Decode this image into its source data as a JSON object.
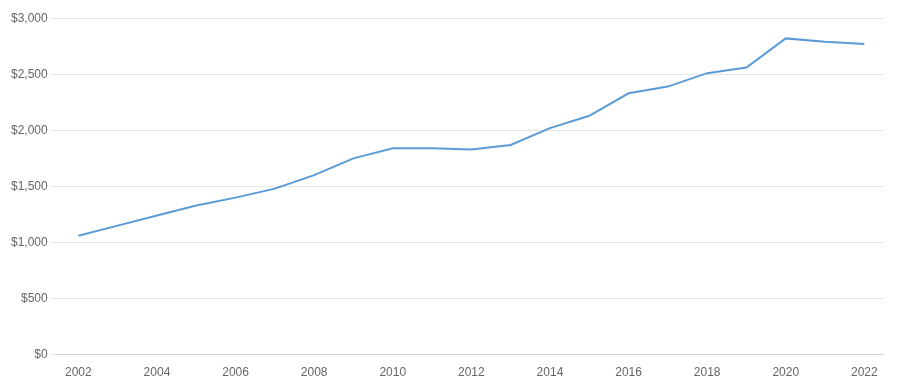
{
  "chart_data": {
    "type": "line",
    "x": [
      2002,
      2003,
      2004,
      2005,
      2006,
      2007,
      2008,
      2009,
      2010,
      2011,
      2012,
      2013,
      2014,
      2015,
      2016,
      2017,
      2018,
      2019,
      2020,
      2021,
      2022
    ],
    "values": [
      1060,
      1150,
      1240,
      1330,
      1400,
      1480,
      1600,
      1750,
      1840,
      1840,
      1830,
      1870,
      2020,
      2130,
      2330,
      2390,
      2510,
      2560,
      2820,
      2790,
      2770
    ],
    "color": "#5b9bd5",
    "xlim": [
      2001.5,
      2022.5
    ],
    "xticks": [
      2002,
      2004,
      2006,
      2008,
      2010,
      2012,
      2014,
      2016,
      2018,
      2020,
      2022
    ],
    "ylim": [
      0,
      3000
    ],
    "yticks": [
      {
        "value": 0,
        "label": "$0"
      },
      {
        "value": 500,
        "label": "$500"
      },
      {
        "value": 1000,
        "label": "$1,000"
      },
      {
        "value": 1500,
        "label": "$1,500"
      },
      {
        "value": 2000,
        "label": "$2,000"
      },
      {
        "value": 2500,
        "label": "$2,500"
      },
      {
        "value": 3000,
        "label": "$3,000"
      }
    ],
    "grid": "y"
  }
}
